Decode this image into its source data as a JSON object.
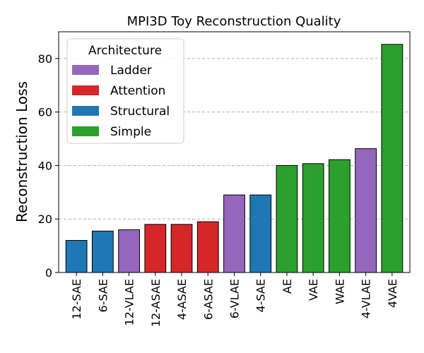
{
  "chart_data": {
    "type": "bar",
    "title": "MPI3D Toy Reconstruction Quality",
    "xlabel": "",
    "ylabel": "Reconstruction Loss",
    "ylim": [
      0,
      90
    ],
    "yticks": [
      0,
      20,
      40,
      60,
      80
    ],
    "grid": "y-dashed",
    "categories": [
      "12-SAE",
      "6-SAE",
      "12-VLAE",
      "12-ASAE",
      "4-ASAE",
      "6-ASAE",
      "6-VLAE",
      "4-SAE",
      "AE",
      "VAE",
      "WAE",
      "4-VLAE",
      "4VAE"
    ],
    "values": [
      12.0,
      15.5,
      16.0,
      18.0,
      18.0,
      19.0,
      29.0,
      29.0,
      40.0,
      40.7,
      42.2,
      46.3,
      85.3
    ],
    "architecture": [
      "Structural",
      "Structural",
      "Ladder",
      "Attention",
      "Attention",
      "Attention",
      "Ladder",
      "Structural",
      "Simple",
      "Simple",
      "Simple",
      "Ladder",
      "Simple"
    ],
    "legend": {
      "title": "Architecture",
      "position": "top-left",
      "entries": [
        {
          "name": "Ladder",
          "color": "#9467bd"
        },
        {
          "name": "Attention",
          "color": "#d62728"
        },
        {
          "name": "Structural",
          "color": "#1f77b4"
        },
        {
          "name": "Simple",
          "color": "#2ca02c"
        }
      ]
    }
  }
}
